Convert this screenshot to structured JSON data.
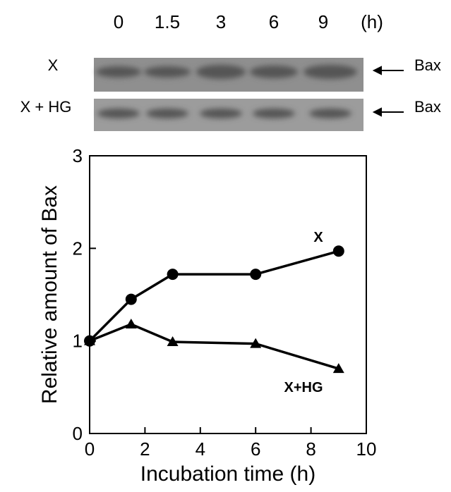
{
  "blot": {
    "lanes": [
      "0",
      "1.5",
      "3",
      "6",
      "9",
      "(h)"
    ],
    "rows": [
      {
        "label": "X",
        "target": "Bax"
      },
      {
        "label": "X + HG",
        "target": "Bax"
      }
    ]
  },
  "chart_data": {
    "type": "line",
    "x_label": "Incubation time (h)",
    "y_label": "Relative amount of Bax",
    "xlim": [
      0,
      10
    ],
    "xticks": [
      0,
      2,
      4,
      6,
      8,
      10
    ],
    "ylim": [
      0,
      3
    ],
    "yticks": [
      0,
      1,
      2,
      3
    ],
    "series": [
      {
        "name": "X",
        "color": "#000000",
        "marker": "circle",
        "x": [
          0,
          1.5,
          3,
          6,
          9
        ],
        "values": [
          1.0,
          1.45,
          1.72,
          1.72,
          1.97
        ]
      },
      {
        "name": "X+HG",
        "color": "#000000",
        "marker": "triangle",
        "x": [
          0,
          1.5,
          3,
          6,
          9
        ],
        "values": [
          1.0,
          1.18,
          0.99,
          0.97,
          0.7
        ]
      }
    ]
  }
}
